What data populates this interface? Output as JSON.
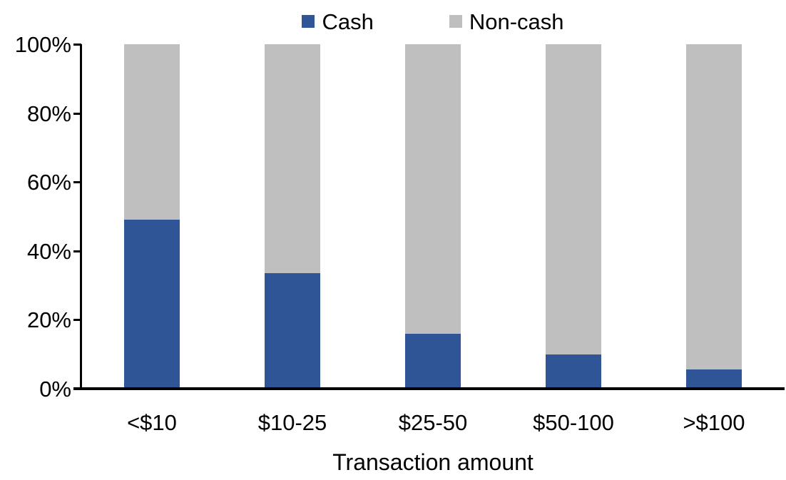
{
  "chart_data": {
    "type": "bar",
    "stacked": true,
    "title": "",
    "xlabel": "Transaction amount",
    "ylabel": "",
    "categories": [
      "<$10",
      "$10-25",
      "$25-50",
      "$50-100",
      ">$100"
    ],
    "series": [
      {
        "name": "Cash",
        "color": "#2F5597",
        "values": [
          49,
          33.5,
          16,
          10,
          5.5
        ]
      },
      {
        "name": "Non-cash",
        "color": "#BFBFBF",
        "values": [
          51,
          66.5,
          84,
          90,
          94.5
        ]
      }
    ],
    "ylim": [
      0,
      100
    ],
    "ytick_step": 20,
    "yticks": [
      "0%",
      "20%",
      "40%",
      "60%",
      "80%",
      "100%"
    ],
    "legend_position": "top-center",
    "grid": false,
    "axis_color": "#000000",
    "text_color": "#000000",
    "background_color": "#FFFFFF"
  }
}
